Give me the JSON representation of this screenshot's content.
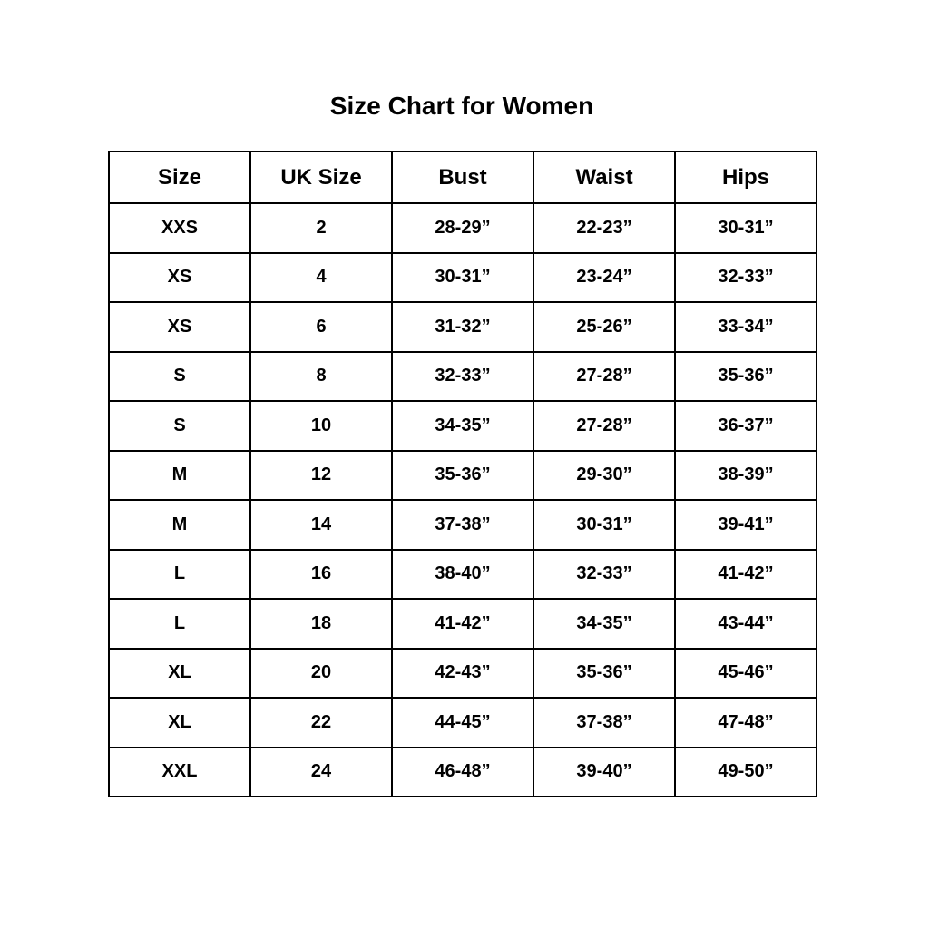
{
  "title": "Size Chart for Women",
  "headers": [
    "Size",
    "UK Size",
    "Bust",
    "Waist",
    "Hips"
  ],
  "rows": [
    [
      "XXS",
      "2",
      "28-29”",
      "22-23”",
      "30-31”"
    ],
    [
      "XS",
      "4",
      "30-31”",
      "23-24”",
      "32-33”"
    ],
    [
      "XS",
      "6",
      "31-32”",
      "25-26”",
      "33-34”"
    ],
    [
      "S",
      "8",
      "32-33”",
      "27-28”",
      "35-36”"
    ],
    [
      "S",
      "10",
      "34-35”",
      "27-28”",
      "36-37”"
    ],
    [
      "M",
      "12",
      "35-36”",
      "29-30”",
      "38-39”"
    ],
    [
      "M",
      "14",
      "37-38”",
      "30-31”",
      "39-41”"
    ],
    [
      "L",
      "16",
      "38-40”",
      "32-33”",
      "41-42”"
    ],
    [
      "L",
      "18",
      "41-42”",
      "34-35”",
      "43-44”"
    ],
    [
      "XL",
      "20",
      "42-43”",
      "35-36”",
      "45-46”"
    ],
    [
      "XL",
      "22",
      "44-45”",
      "37-38”",
      "47-48”"
    ],
    [
      "XXL",
      "24",
      "46-48”",
      "39-40”",
      "49-50”"
    ]
  ]
}
